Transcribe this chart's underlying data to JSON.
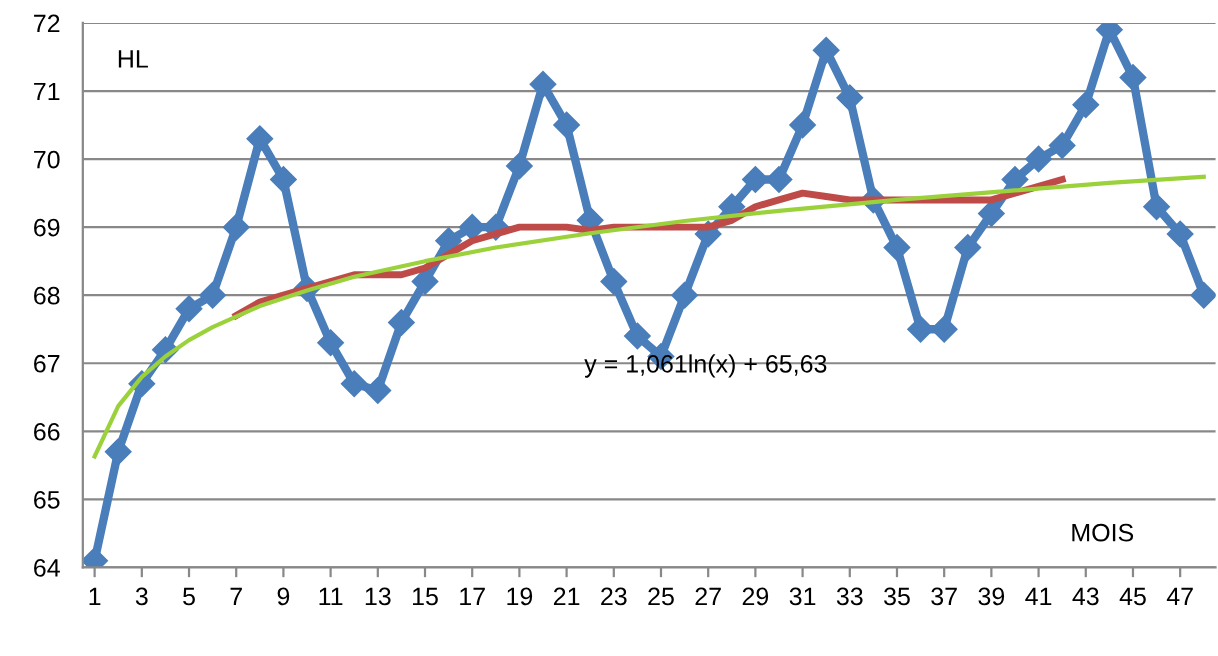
{
  "chart_data": {
    "type": "line",
    "xlim": [
      0.5,
      48.5
    ],
    "xticks": [
      1,
      3,
      5,
      7,
      9,
      11,
      13,
      15,
      17,
      19,
      21,
      23,
      25,
      27,
      29,
      31,
      33,
      35,
      37,
      39,
      41,
      43,
      45,
      47
    ],
    "ylim": [
      64,
      72
    ],
    "yticks": [
      64,
      65,
      66,
      67,
      68,
      69,
      70,
      71,
      72
    ],
    "grid": "y",
    "legend": false,
    "series": [
      {
        "color": "#4a7ebb",
        "marker": "diamond",
        "x": [
          1,
          2,
          3,
          4,
          5,
          6,
          7,
          8,
          9,
          10,
          11,
          12,
          13,
          14,
          15,
          16,
          17,
          18,
          19,
          20,
          21,
          22,
          23,
          24,
          25,
          26,
          27,
          28,
          29,
          30,
          31,
          32,
          33,
          34,
          35,
          36,
          37,
          38,
          39,
          40,
          41,
          42,
          43,
          44,
          45,
          46,
          47,
          48
        ],
        "values": [
          64.1,
          65.7,
          66.7,
          67.2,
          67.8,
          68.0,
          69.0,
          70.3,
          69.7,
          68.1,
          67.3,
          66.7,
          66.6,
          67.6,
          68.2,
          68.8,
          69.0,
          69.0,
          69.9,
          71.1,
          70.5,
          69.1,
          68.2,
          67.4,
          67.1,
          68.0,
          68.9,
          69.3,
          69.7,
          69.7,
          70.5,
          71.6,
          70.9,
          69.4,
          68.7,
          67.5,
          67.5,
          68.7,
          69.2,
          69.7,
          70.0,
          70.2,
          70.8,
          71.9,
          71.2,
          69.3,
          68.9,
          68.0
        ]
      },
      {
        "color": "#be4b48",
        "x": [
          7,
          8,
          9,
          10,
          11,
          12,
          13,
          14,
          15,
          16,
          17,
          18,
          19,
          20,
          21,
          22,
          23,
          24,
          25,
          26,
          27,
          28,
          29,
          30,
          31,
          32,
          33,
          34,
          35,
          36,
          37,
          38,
          39,
          40,
          41,
          42
        ],
        "values": [
          67.7,
          67.9,
          68.0,
          68.1,
          68.2,
          68.3,
          68.3,
          68.3,
          68.4,
          68.6,
          68.8,
          68.9,
          69.0,
          69.0,
          69.0,
          68.95,
          69.0,
          69.0,
          69.0,
          69.0,
          69.0,
          69.1,
          69.3,
          69.4,
          69.5,
          69.45,
          69.4,
          69.4,
          69.4,
          69.4,
          69.4,
          69.4,
          69.4,
          69.5,
          69.6,
          69.7
        ]
      },
      {
        "color": "#9bd23c",
        "x": [
          1,
          2,
          3,
          4,
          5,
          6,
          8,
          10,
          12,
          15,
          18,
          22,
          26,
          30,
          35,
          40,
          44,
          48
        ],
        "values": [
          65.63,
          66.37,
          66.8,
          67.1,
          67.34,
          67.53,
          67.84,
          68.07,
          68.27,
          68.5,
          68.7,
          68.91,
          69.09,
          69.24,
          69.4,
          69.54,
          69.65,
          69.74
        ]
      }
    ],
    "annotations": [
      {
        "text": "HL"
      },
      {
        "text": "MOIS"
      },
      {
        "text": "y = 1,061ln(x) + 65,63"
      }
    ]
  }
}
